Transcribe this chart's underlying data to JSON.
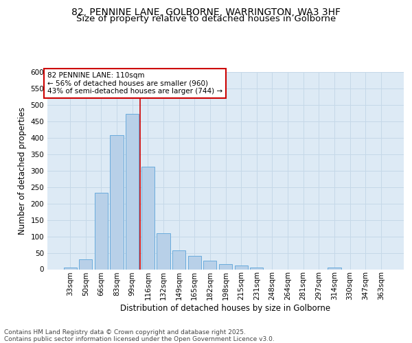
{
  "title_line1": "82, PENNINE LANE, GOLBORNE, WARRINGTON, WA3 3HF",
  "title_line2": "Size of property relative to detached houses in Golborne",
  "xlabel": "Distribution of detached houses by size in Golborne",
  "ylabel": "Number of detached properties",
  "categories": [
    "33sqm",
    "50sqm",
    "66sqm",
    "83sqm",
    "99sqm",
    "116sqm",
    "132sqm",
    "149sqm",
    "165sqm",
    "182sqm",
    "198sqm",
    "215sqm",
    "231sqm",
    "248sqm",
    "264sqm",
    "281sqm",
    "297sqm",
    "314sqm",
    "330sqm",
    "347sqm",
    "363sqm"
  ],
  "values": [
    5,
    30,
    232,
    407,
    473,
    313,
    110,
    57,
    40,
    27,
    15,
    12,
    5,
    0,
    0,
    0,
    0,
    5,
    0,
    0,
    0
  ],
  "bar_color": "#b8d0e8",
  "bar_edge_color": "#6aabdc",
  "grid_color": "#c5d8e8",
  "background_color": "#ddeaf5",
  "vline_color": "#cc0000",
  "vline_x": 4.5,
  "annotation_text": "82 PENNINE LANE: 110sqm\n← 56% of detached houses are smaller (960)\n43% of semi-detached houses are larger (744) →",
  "annotation_box_facecolor": "white",
  "annotation_box_edgecolor": "#cc0000",
  "ylim": [
    0,
    600
  ],
  "yticks": [
    0,
    50,
    100,
    150,
    200,
    250,
    300,
    350,
    400,
    450,
    500,
    550,
    600
  ],
  "footer_text": "Contains HM Land Registry data © Crown copyright and database right 2025.\nContains public sector information licensed under the Open Government Licence v3.0.",
  "title_fontsize": 10,
  "subtitle_fontsize": 9.5,
  "axis_label_fontsize": 8.5,
  "tick_fontsize": 7.5,
  "annotation_fontsize": 7.5,
  "footer_fontsize": 6.5
}
